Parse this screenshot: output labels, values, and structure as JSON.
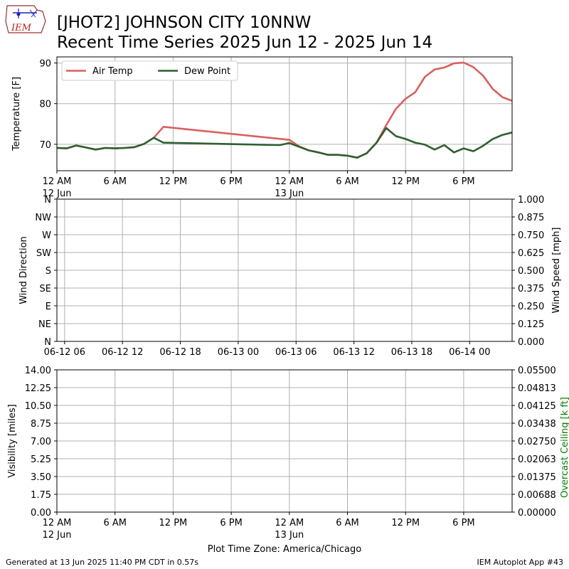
{
  "header": {
    "logo_text": "IEM",
    "title_line1": "[JHOT2] JOHNSON CITY 10NNW",
    "title_line2": "Recent Time Series 2025 Jun 12 - 2025 Jun 14"
  },
  "footer": {
    "generated": "Generated at 13 Jun 2025 11:40 PM CDT in 0.57s",
    "app": "IEM Autoplot App #43",
    "timezone": "Plot Time Zone: America/Chicago"
  },
  "colors": {
    "air_temp": "#d95f5f",
    "dew_point": "#2f5f2f",
    "ceiling_label": "#008000",
    "grid": "#b0b0b0"
  },
  "chart_data": [
    {
      "type": "line",
      "ylabel": "Temperature [F]",
      "ylim": [
        63.5,
        91.5
      ],
      "yticks": [
        70,
        80,
        90
      ],
      "xlim": [
        0,
        47
      ],
      "x_unit": "hours since 12 Jun 2025 12 AM CDT",
      "x_ticks": [
        {
          "x": 0,
          "label": "12 AM",
          "sub": "12 Jun"
        },
        {
          "x": 6,
          "label": "6 AM",
          "sub": ""
        },
        {
          "x": 12,
          "label": "12 PM",
          "sub": ""
        },
        {
          "x": 18,
          "label": "6 PM",
          "sub": ""
        },
        {
          "x": 24,
          "label": "12 AM",
          "sub": "13 Jun"
        },
        {
          "x": 30,
          "label": "6 AM",
          "sub": ""
        },
        {
          "x": 36,
          "label": "12 PM",
          "sub": ""
        },
        {
          "x": 42,
          "label": "6 PM",
          "sub": ""
        }
      ],
      "grid": true,
      "legend": "upper-left",
      "series": [
        {
          "name": "Air Temp",
          "color": "#d95f5f",
          "x": [
            0,
            1,
            2,
            3,
            4,
            5,
            6,
            7,
            8,
            9,
            10,
            11,
            24,
            25,
            26,
            27,
            28,
            29,
            30,
            31,
            32,
            33,
            34,
            35,
            36,
            37,
            38,
            39,
            40,
            41,
            42,
            43,
            44,
            45,
            46,
            47
          ],
          "y": [
            69.1,
            69.0,
            69.7,
            69.2,
            68.7,
            69.1,
            69.0,
            69.1,
            69.3,
            70.1,
            71.6,
            74.3,
            71.1,
            69.5,
            68.5,
            68.0,
            67.4,
            67.4,
            67.2,
            66.7,
            67.8,
            70.4,
            74.7,
            78.7,
            81.2,
            82.8,
            86.6,
            88.4,
            88.9,
            89.9,
            90.1,
            89.0,
            86.9,
            83.6,
            81.6,
            80.7
          ]
        },
        {
          "name": "Dew Point",
          "color": "#2f5f2f",
          "x": [
            0,
            1,
            2,
            3,
            4,
            5,
            6,
            7,
            8,
            9,
            10,
            11,
            23,
            24,
            25,
            26,
            27,
            28,
            29,
            30,
            31,
            32,
            33,
            34,
            35,
            36,
            37,
            38,
            39,
            40,
            41,
            42,
            43,
            44,
            45,
            46,
            47
          ],
          "y": [
            69.1,
            69.0,
            69.7,
            69.2,
            68.7,
            69.1,
            69.0,
            69.1,
            69.3,
            70.1,
            71.6,
            70.4,
            69.8,
            70.3,
            69.4,
            68.5,
            68.0,
            67.4,
            67.4,
            67.2,
            66.7,
            67.8,
            70.4,
            74.0,
            72.0,
            71.3,
            70.4,
            69.9,
            68.7,
            69.8,
            68.0,
            69.0,
            68.3,
            69.6,
            71.3,
            72.3,
            72.9
          ]
        }
      ]
    },
    {
      "type": "line",
      "ylabel": "Wind Direction",
      "y2label": "Wind Speed [mph]",
      "yticks": [
        "N",
        "NE",
        "E",
        "SE",
        "S",
        "SW",
        "W",
        "NW",
        "N"
      ],
      "y2ticks": [
        "0.000",
        "0.125",
        "0.250",
        "0.375",
        "0.500",
        "0.625",
        "0.750",
        "0.875",
        "1.000"
      ],
      "ylim": [
        0,
        360
      ],
      "y2lim": [
        0,
        1
      ],
      "xlim": [
        -0.8,
        46.4
      ],
      "x_ticks": [
        {
          "x": 0,
          "label": "06-12 06"
        },
        {
          "x": 6,
          "label": "06-12 12"
        },
        {
          "x": 12,
          "label": "06-12 18"
        },
        {
          "x": 18,
          "label": "06-13 00"
        },
        {
          "x": 24,
          "label": "06-13 06"
        },
        {
          "x": 30,
          "label": "06-13 12"
        },
        {
          "x": 36,
          "label": "06-13 18"
        },
        {
          "x": 42,
          "label": "06-14 00"
        }
      ],
      "grid": true,
      "series": []
    },
    {
      "type": "line",
      "ylabel": "Visibility [miles]",
      "y2label": "Overcast Ceiling [k ft]",
      "yticks": [
        "0.00",
        "1.75",
        "3.50",
        "5.25",
        "7.00",
        "8.75",
        "10.50",
        "12.25",
        "14.00"
      ],
      "y2ticks": [
        "0.00000",
        "0.00688",
        "0.01375",
        "0.02063",
        "0.02750",
        "0.03438",
        "0.04125",
        "0.04813",
        "0.05500"
      ],
      "ylim": [
        0,
        14
      ],
      "y2lim": [
        0,
        0.055
      ],
      "xlim": [
        0,
        47
      ],
      "x_ticks": [
        {
          "x": 0,
          "label": "12 AM",
          "sub": "12 Jun"
        },
        {
          "x": 6,
          "label": "6 AM",
          "sub": ""
        },
        {
          "x": 12,
          "label": "12 PM",
          "sub": ""
        },
        {
          "x": 18,
          "label": "6 PM",
          "sub": ""
        },
        {
          "x": 24,
          "label": "12 AM",
          "sub": "13 Jun"
        },
        {
          "x": 30,
          "label": "6 AM",
          "sub": ""
        },
        {
          "x": 36,
          "label": "12 PM",
          "sub": ""
        },
        {
          "x": 42,
          "label": "6 PM",
          "sub": ""
        }
      ],
      "grid": true,
      "series": []
    }
  ]
}
